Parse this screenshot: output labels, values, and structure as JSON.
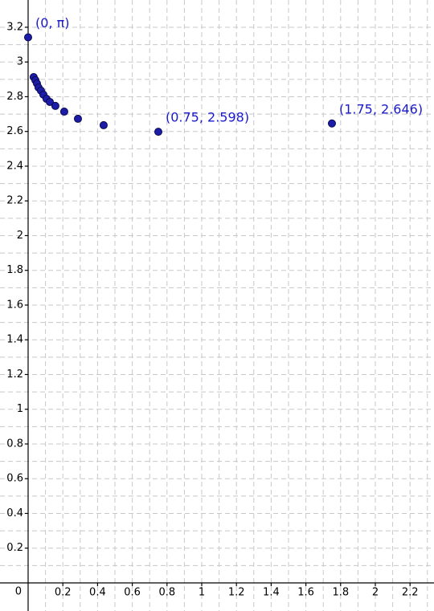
{
  "chart_data": {
    "type": "scatter",
    "x": [
      0,
      0.032,
      0.042,
      0.051,
      0.06,
      0.074,
      0.088,
      0.106,
      0.125,
      0.157,
      0.208,
      0.287,
      0.435,
      0.75,
      1.75
    ],
    "values": [
      3.142,
      2.913,
      2.895,
      2.876,
      2.853,
      2.835,
      2.812,
      2.788,
      2.77,
      2.747,
      2.714,
      2.673,
      2.636,
      2.598,
      2.646
    ],
    "value_labels": [
      "(0, π)",
      null,
      null,
      null,
      null,
      null,
      null,
      null,
      null,
      null,
      null,
      null,
      null,
      "(0.75, 2.598)",
      "(1.75, 2.646)"
    ],
    "color": "#1c1ca8",
    "label_color": "#1a1acc",
    "xlim": [
      -0.162,
      2.338
    ],
    "ylim": [
      -0.162,
      3.357
    ],
    "xticks": [
      0,
      0.2,
      0.4,
      0.6,
      0.8,
      1,
      1.2,
      1.4,
      1.6,
      1.8,
      2,
      2.2
    ],
    "yticks": [
      0.2,
      0.4,
      0.6,
      0.8,
      1,
      1.2,
      1.4,
      1.6,
      1.8,
      2,
      2.2,
      2.4,
      2.6,
      2.8,
      3,
      3.2
    ],
    "grid": true
  }
}
